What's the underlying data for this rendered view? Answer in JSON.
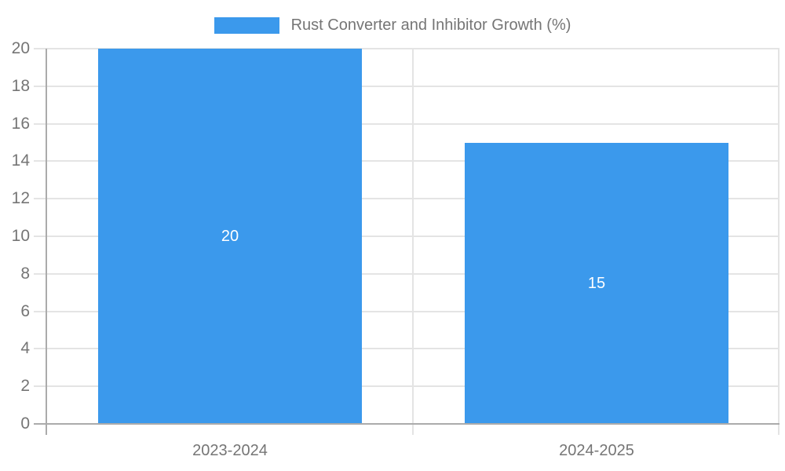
{
  "chart_data": {
    "type": "bar",
    "title": "Rust Converter and Inhibitor Growth (%)",
    "categories": [
      "2023-2024",
      "2024-2025"
    ],
    "series": [
      {
        "name": "Rust Converter and Inhibitor Growth (%)",
        "values": [
          20,
          15
        ]
      }
    ],
    "bar_value_labels": [
      "20",
      "15"
    ],
    "xlabel": "",
    "ylabel": "",
    "ylim": [
      0,
      20
    ],
    "yticks": [
      0,
      2,
      4,
      6,
      8,
      10,
      12,
      14,
      16,
      18,
      20
    ],
    "grid": "horizontal gridlines at each y tick, vertical gridlines at category boundaries",
    "legend_position": "top-center",
    "colors": {
      "bar": "#3B99EC",
      "axis_text": "#757575",
      "legend_text": "#757575",
      "gridline": "#E4E4E4",
      "axis_line": "#ABABAB",
      "bar_label_text": "#FFFFFF",
      "background": "#FFFFFF"
    }
  }
}
